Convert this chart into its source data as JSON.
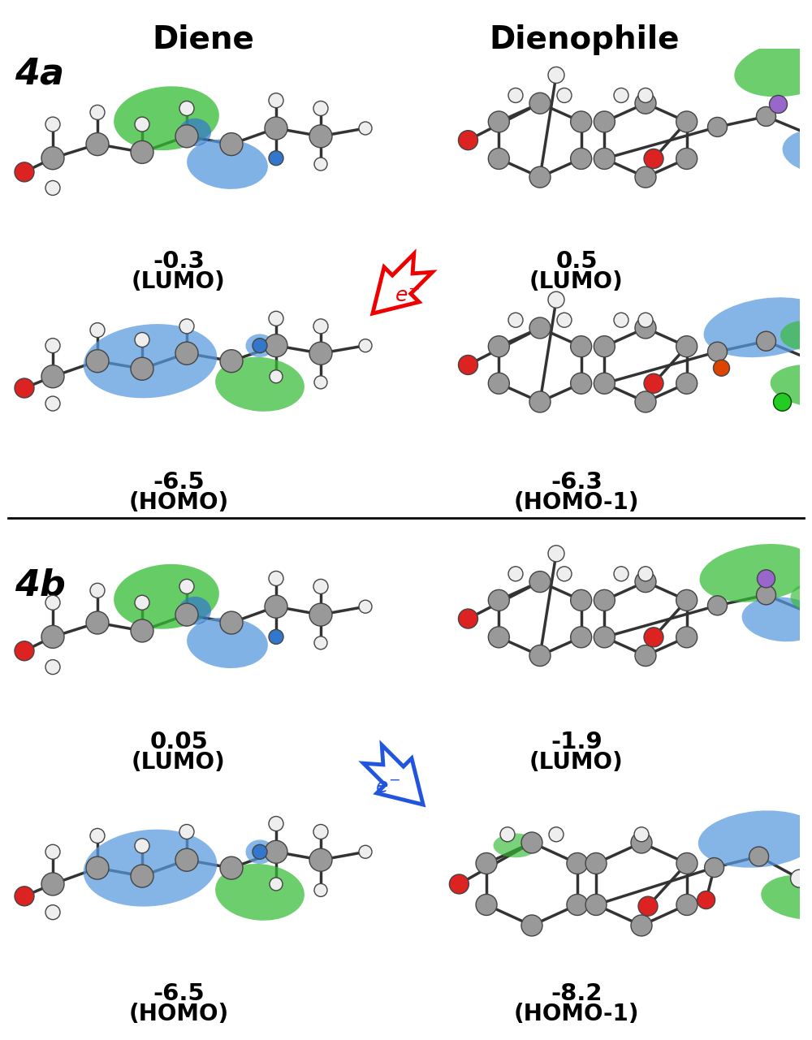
{
  "title_diene": "Diene",
  "title_dienophile": "Dienophile",
  "label_4a": "4a",
  "label_4b": "4b",
  "section_4a": {
    "diene_lumo_energy": "-0.3",
    "diene_lumo_label": "(LUMO)",
    "diene_homo_energy": "-6.5",
    "diene_homo_label": "(HOMO)",
    "dienophile_lumo_energy": "0.5",
    "dienophile_lumo_label": "(LUMO)",
    "dienophile_homo_energy": "-6.3",
    "dienophile_homo_label": "(HOMO-1)",
    "arrow_color": "#EE0000"
  },
  "section_4b": {
    "diene_lumo_energy": "0.05",
    "diene_lumo_label": "(LUMO)",
    "diene_homo_energy": "-6.5",
    "diene_homo_label": "(HOMO)",
    "dienophile_lumo_energy": "-1.9",
    "dienophile_lumo_label": "(LUMO)",
    "dienophile_homo_energy": "-8.2",
    "dienophile_homo_label": "(HOMO-1)",
    "arrow_color": "#2255DD"
  },
  "bg_color": "#FFFFFF",
  "text_color": "#000000",
  "title_fontsize": 28,
  "label_fontsize": 22,
  "energy_fontsize": 21,
  "sublabel_fontsize": 20,
  "section_label_fontsize": 32,
  "mol_color_blue": "#5599DD",
  "mol_color_green": "#33BB33",
  "mol_color_gray": "#999999",
  "mol_color_white": "#EEEEEE",
  "mol_color_red": "#DD2222",
  "mol_color_dark": "#333333",
  "mol_color_blue2": "#3377CC",
  "mol_color_purple": "#9966CC"
}
